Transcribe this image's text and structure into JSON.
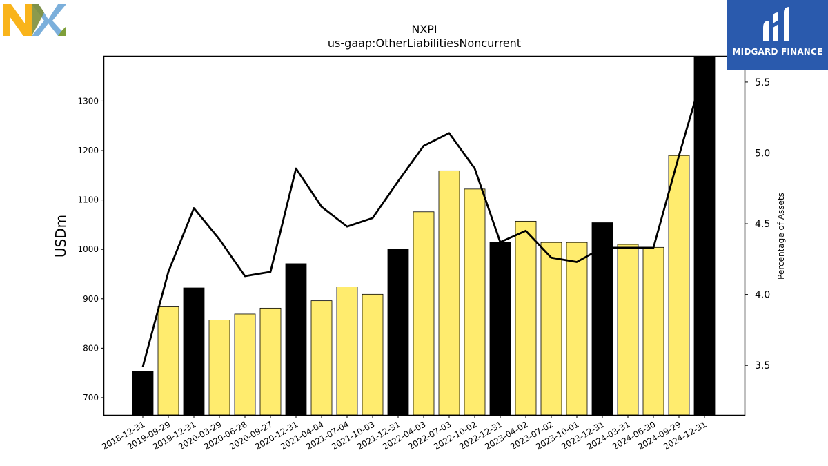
{
  "branding": {
    "nxp_logo_icon": "nxp-logo",
    "midgard_logo_icon": "midgard-finance-logo",
    "midgard_name": "MIDGARD FINANCE",
    "colors": {
      "nxp_orange": "#f9b41b",
      "nxp_blue": "#7bafdb",
      "nxp_green": "#c9d42b",
      "midgard_blue": "#2a5aad"
    }
  },
  "chart_data": {
    "type": "bar",
    "title": "NXPI",
    "subtitle": "us-gaap:OtherLiabilitiesNoncurrent",
    "ylabel": "USDm",
    "y2label": "Percentage of Assets",
    "ylim": [
      665,
      1390
    ],
    "y2lim": [
      3.15,
      5.68
    ],
    "yticks": [
      700,
      800,
      900,
      1000,
      1100,
      1200,
      1300
    ],
    "y2ticks": [
      3.5,
      4.0,
      4.5,
      5.0,
      5.5
    ],
    "grid": false,
    "categories": [
      "2018-12-31",
      "2019-09-29",
      "2019-12-31",
      "2020-03-29",
      "2020-06-28",
      "2020-09-27",
      "2020-12-31",
      "2021-04-04",
      "2021-07-04",
      "2021-10-03",
      "2021-12-31",
      "2022-04-03",
      "2022-07-03",
      "2022-10-02",
      "2022-12-31",
      "2023-04-02",
      "2023-07-02",
      "2023-10-01",
      "2023-12-31",
      "2024-03-31",
      "2024-06-30",
      "2024-09-29",
      "2024-12-31"
    ],
    "series": [
      {
        "type": "bar",
        "values": [
          753,
          885,
          922,
          857,
          869,
          881,
          971,
          896,
          924,
          909,
          1001,
          1076,
          1159,
          1122,
          1015,
          1057,
          1014,
          1014,
          1054,
          1010,
          1004,
          1190,
          1390
        ],
        "annual_color": "#000000",
        "quarterly_color": "#ffec6e"
      },
      {
        "type": "line",
        "axis": "right",
        "values": [
          3.49,
          4.16,
          4.61,
          4.39,
          4.13,
          4.16,
          4.89,
          4.62,
          4.48,
          4.54,
          4.8,
          5.05,
          5.14,
          4.89,
          4.37,
          4.45,
          4.26,
          4.23,
          4.33,
          4.33,
          4.33,
          4.98,
          5.6
        ],
        "color": "#000000"
      }
    ],
    "annual_flags": [
      true,
      false,
      true,
      false,
      false,
      false,
      true,
      false,
      false,
      false,
      true,
      false,
      false,
      false,
      true,
      false,
      false,
      false,
      true,
      false,
      false,
      false,
      true
    ]
  }
}
